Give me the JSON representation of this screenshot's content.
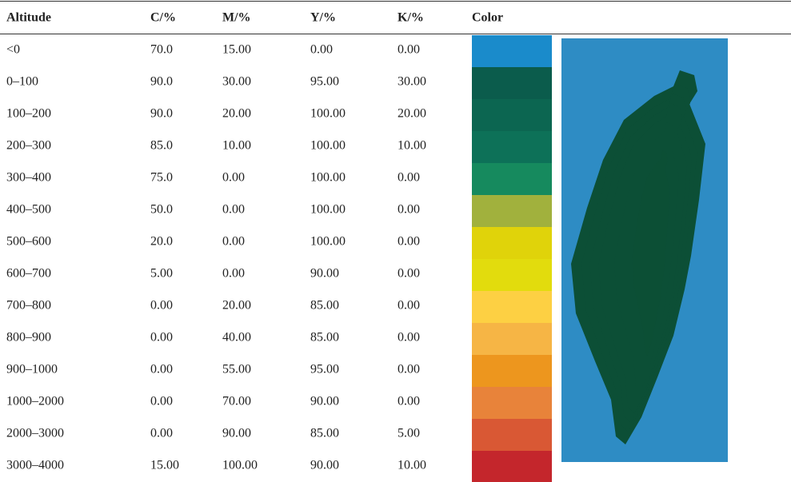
{
  "table": {
    "header": [
      "Altitude",
      "C/%",
      "M/%",
      "Y/%",
      "K/%",
      "Color"
    ],
    "rows": [
      [
        "<0",
        "70.0",
        "15.00",
        "0.00",
        "0.00"
      ],
      [
        "0–100",
        "90.0",
        "30.00",
        "95.00",
        "30.00"
      ],
      [
        "100–200",
        "90.0",
        "20.00",
        "100.00",
        "20.00"
      ],
      [
        "200–300",
        "85.0",
        "10.00",
        "100.00",
        "10.00"
      ],
      [
        "300–400",
        "75.0",
        "0.00",
        "100.00",
        "0.00"
      ],
      [
        "400–500",
        "50.0",
        "0.00",
        "100.00",
        "0.00"
      ],
      [
        "500–600",
        "20.0",
        "0.00",
        "100.00",
        "0.00"
      ],
      [
        "600–700",
        "5.00",
        "0.00",
        "90.00",
        "0.00"
      ],
      [
        "700–800",
        "0.00",
        "20.00",
        "85.00",
        "0.00"
      ],
      [
        "800–900",
        "0.00",
        "40.00",
        "85.00",
        "0.00"
      ],
      [
        "900–1000",
        "0.00",
        "55.00",
        "95.00",
        "0.00"
      ],
      [
        "1000–2000",
        "0.00",
        "70.00",
        "90.00",
        "0.00"
      ],
      [
        "2000–3000",
        "0.00",
        "90.00",
        "85.00",
        "5.00"
      ],
      [
        "3000–4000",
        "15.00",
        "100.00",
        "90.00",
        "10.00"
      ]
    ],
    "swatches": [
      "#1a8bcb",
      "#0b5c4c",
      "#0c6651",
      "#0d7158",
      "#168a5e",
      "#a1b13d",
      "#e0d30a",
      "#e2dc0d",
      "#fdd043",
      "#f6b545",
      "#ed961e",
      "#e8833a",
      "#d95834",
      "#c4262c"
    ]
  }
}
